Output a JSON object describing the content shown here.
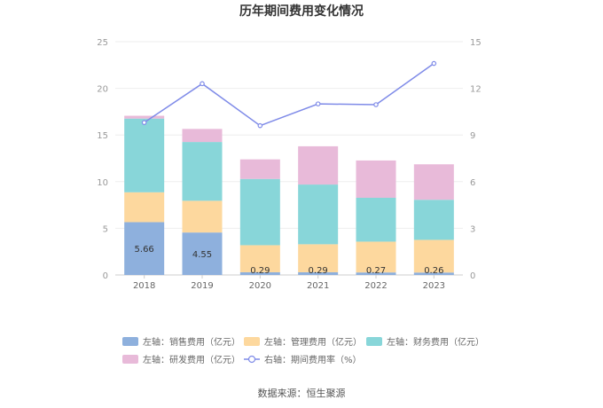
{
  "chart_data": {
    "type": "bar",
    "title": "历年期间费用变化情况",
    "categories": [
      "2018",
      "2019",
      "2020",
      "2021",
      "2022",
      "2023"
    ],
    "stacked": true,
    "left_axis": {
      "min": 0,
      "max": 25,
      "ticks": [
        "0",
        "5",
        "10",
        "15",
        "20",
        "25"
      ]
    },
    "right_axis": {
      "min": 0,
      "max": 15,
      "ticks": [
        "0",
        "3",
        "6",
        "9",
        "12",
        "15"
      ]
    },
    "series": [
      {
        "name": "左轴：销售费用（亿元）",
        "type": "bar",
        "axis": "left",
        "color": "#8eb0dd",
        "values": [
          5.66,
          4.55,
          0.29,
          0.29,
          0.27,
          0.26
        ]
      },
      {
        "name": "左轴：管理费用（亿元）",
        "type": "bar",
        "axis": "left",
        "color": "#fdd89e",
        "values": [
          3.2,
          3.4,
          2.9,
          3.0,
          3.3,
          3.5
        ]
      },
      {
        "name": "左轴：财务费用（亿元）",
        "type": "bar",
        "axis": "left",
        "color": "#88d6d9",
        "values": [
          7.9,
          6.3,
          7.1,
          6.4,
          4.7,
          4.3
        ]
      },
      {
        "name": "左轴：研发费用（亿元）",
        "type": "bar",
        "axis": "left",
        "color": "#e8bad9",
        "values": [
          0.3,
          1.4,
          2.1,
          4.1,
          4.0,
          3.8
        ]
      },
      {
        "name": "右轴：期间费用率（%）",
        "type": "line",
        "axis": "right",
        "color": "#7f8be8",
        "values": [
          9.8,
          12.3,
          9.6,
          11.0,
          10.95,
          13.6
        ]
      }
    ],
    "data_labels": [
      "5.66",
      "4.55",
      "0.29",
      "0.29",
      "0.27",
      "0.26"
    ],
    "grid": true,
    "legend_position": "bottom"
  },
  "source": "数据来源：恒生聚源"
}
